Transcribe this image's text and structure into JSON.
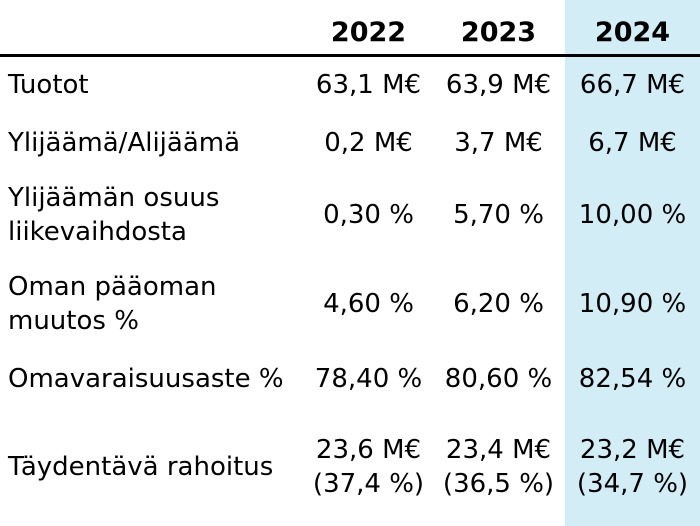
{
  "chart_data": {
    "type": "table",
    "columns": [
      "2022",
      "2023",
      "2024"
    ],
    "highlighted_column": "2024",
    "highlight_color": "#d3edf7",
    "header_rule_color": "#000000",
    "text_color": "#000000",
    "rows": [
      {
        "label": "Tuotot",
        "values": [
          "63,1 M€",
          "63,9 M€",
          "66,7 M€"
        ]
      },
      {
        "label": "Ylijäämä/Alijäämä",
        "values": [
          "0,2 M€",
          "3,7 M€",
          "6,7 M€"
        ]
      },
      {
        "label": "Ylijäämän osuus\nliikevaihdosta",
        "values": [
          "0,30 %",
          "5,70 %",
          "10,00 %"
        ]
      },
      {
        "label": "Oman pääoman\nmuutos %",
        "values": [
          "4,60 %",
          "6,20 %",
          "10,90 %"
        ]
      },
      {
        "label": "Omavaraisuusaste %",
        "values": [
          "78,40 %",
          "80,60 %",
          "82,54 %"
        ]
      },
      {
        "label": "Täydentävä rahoitus",
        "values": [
          "23,6 M€\n(37,4 %)",
          "23,4 M€\n(36,5 %)",
          "23,2 M€\n(34,7 %)"
        ]
      }
    ]
  }
}
